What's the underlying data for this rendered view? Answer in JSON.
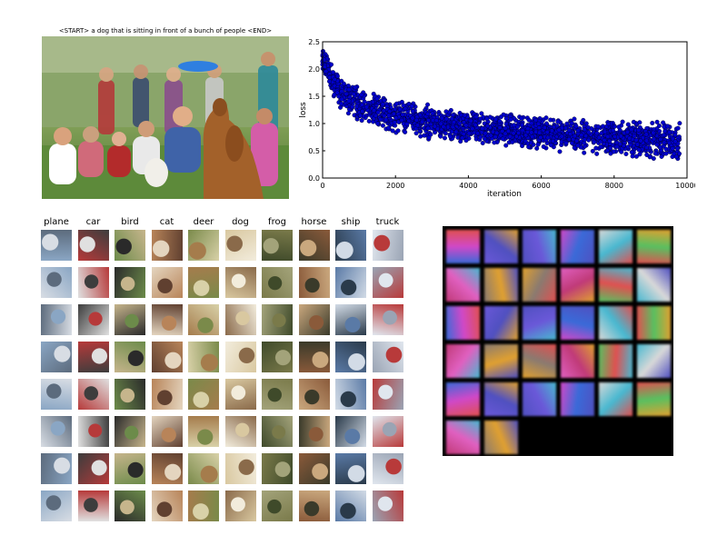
{
  "caption": "<START> a dog that is sitting in front of a bunch of people <END>",
  "photo": {
    "subject": "dog-catching-frisbee-crowd"
  },
  "loss_chart": {
    "chart_data": {
      "type": "scatter",
      "xlabel": "iteration",
      "ylabel": "loss",
      "xlim": [
        0,
        10000
      ],
      "ylim": [
        0.0,
        2.5
      ],
      "xticks": [
        "0",
        "2000",
        "4000",
        "6000",
        "8000",
        "10000"
      ],
      "yticks": [
        "0.0",
        "0.5",
        "1.0",
        "1.5",
        "2.0",
        "2.5"
      ],
      "grid": false,
      "marker_color": "#0000cc",
      "series": [
        {
          "x": [
            0,
            250,
            500,
            1000,
            1500,
            2000,
            3000,
            4000,
            5000,
            6000,
            7000,
            8000,
            9000,
            9800
          ],
          "y_mean": [
            2.2,
            1.8,
            1.55,
            1.35,
            1.22,
            1.13,
            1.02,
            0.95,
            0.88,
            0.82,
            0.77,
            0.73,
            0.7,
            0.68
          ],
          "y_spread": [
            0.2,
            0.3,
            0.32,
            0.32,
            0.32,
            0.32,
            0.32,
            0.32,
            0.32,
            0.32,
            0.32,
            0.33,
            0.35,
            0.38
          ]
        }
      ]
    }
  },
  "cifar": {
    "classes": [
      "plane",
      "car",
      "bird",
      "cat",
      "deer",
      "dog",
      "frog",
      "horse",
      "ship",
      "truck"
    ],
    "rows": 8
  },
  "filters": {
    "cols": 6,
    "rows": 6,
    "count": 32
  },
  "colors": {
    "sky": "#b9c8dc",
    "grass": "#6f9448",
    "dog": "#9a5a26"
  }
}
